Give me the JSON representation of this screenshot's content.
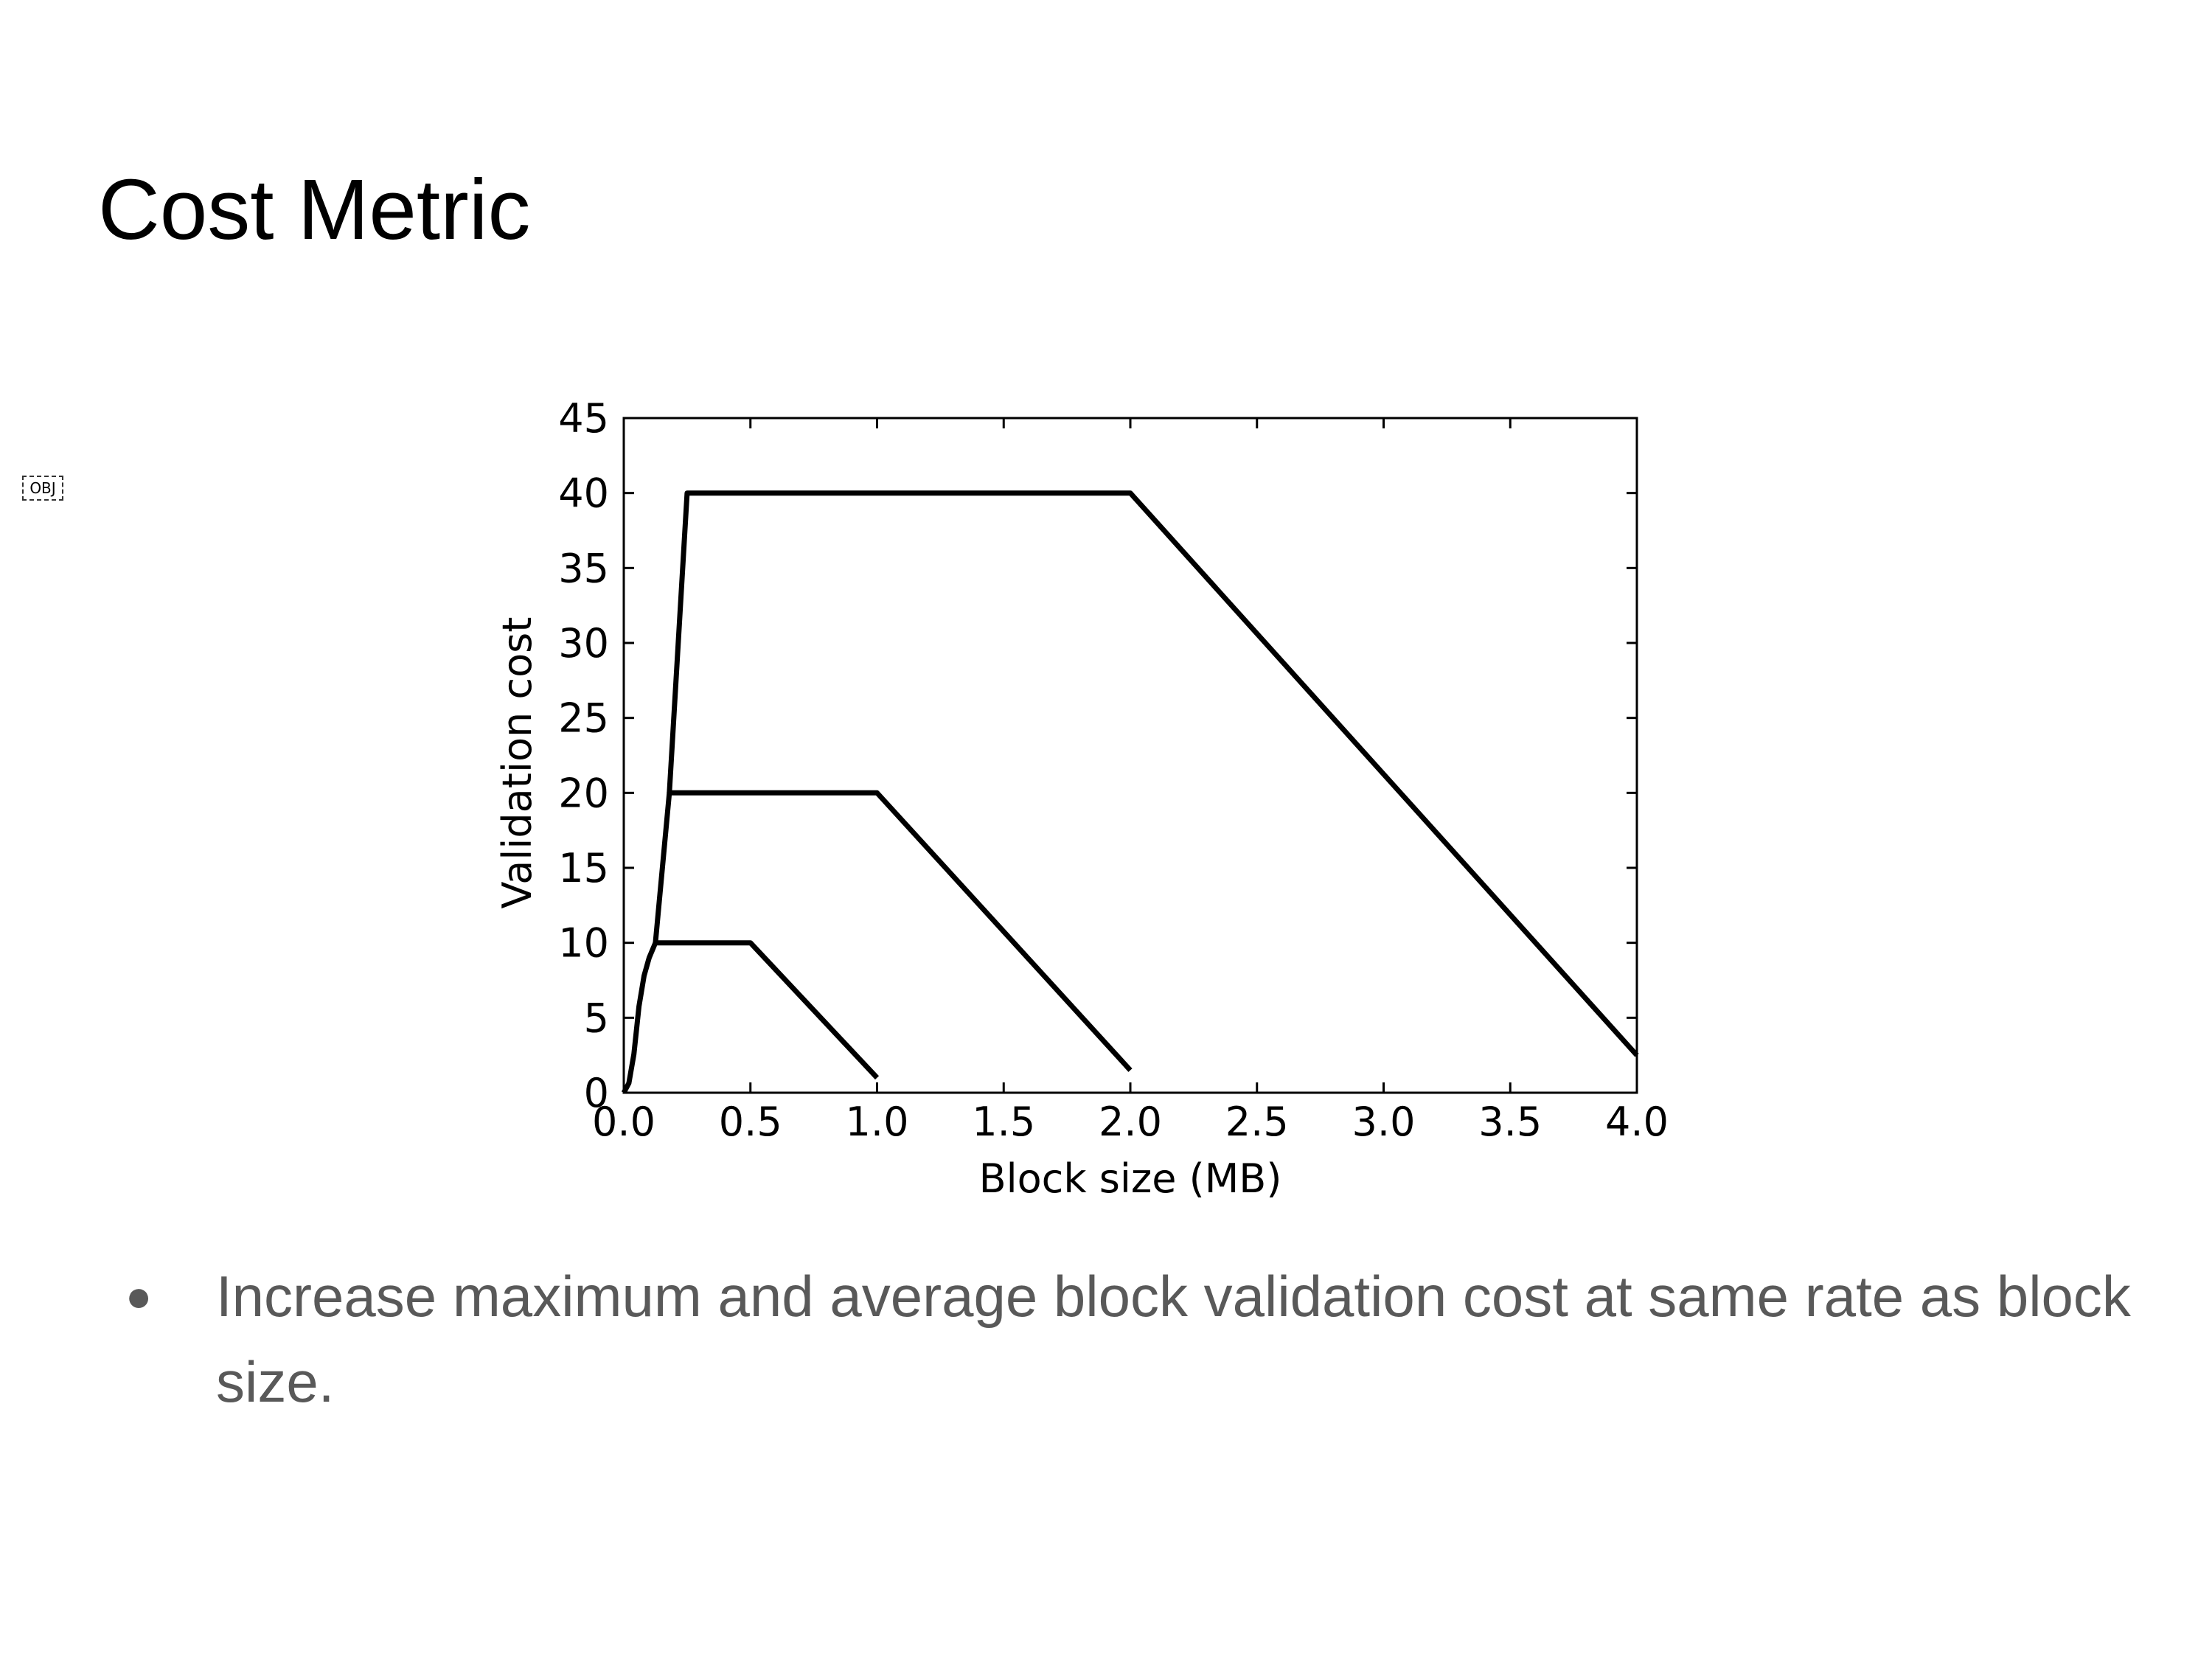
{
  "slide": {
    "title": "Cost Metric",
    "object_placeholder": "OBJ",
    "bullets": [
      {
        "marker": "●",
        "text": "Increase maximum and average block validation cost at same rate as block size."
      }
    ]
  },
  "chart_data": {
    "type": "line",
    "title": "",
    "xlabel": "Block size (MB)",
    "ylabel": "Validation cost",
    "xlim": [
      0.0,
      4.0
    ],
    "ylim": [
      0,
      45
    ],
    "xticks": [
      "0.0",
      "0.5",
      "1.0",
      "1.5",
      "2.0",
      "2.5",
      "3.0",
      "3.5",
      "4.0"
    ],
    "yticks": [
      "0",
      "5",
      "10",
      "15",
      "20",
      "25",
      "30",
      "35",
      "40",
      "45"
    ],
    "grid": false,
    "line_color": "#000000",
    "series": [
      {
        "x": [
          0.0,
          0.02,
          0.04,
          0.06,
          0.08,
          0.1,
          0.125,
          0.5,
          1.0
        ],
        "values": [
          0,
          0.64,
          2.56,
          5.76,
          7.8,
          9.0,
          10,
          10,
          1
        ]
      },
      {
        "x": [
          0.125,
          0.18,
          1.0,
          2.0
        ],
        "values": [
          10,
          20,
          20,
          1.5
        ]
      },
      {
        "x": [
          0.18,
          0.25,
          2.0,
          4.0
        ],
        "values": [
          20,
          40,
          40,
          2.5
        ]
      }
    ]
  }
}
